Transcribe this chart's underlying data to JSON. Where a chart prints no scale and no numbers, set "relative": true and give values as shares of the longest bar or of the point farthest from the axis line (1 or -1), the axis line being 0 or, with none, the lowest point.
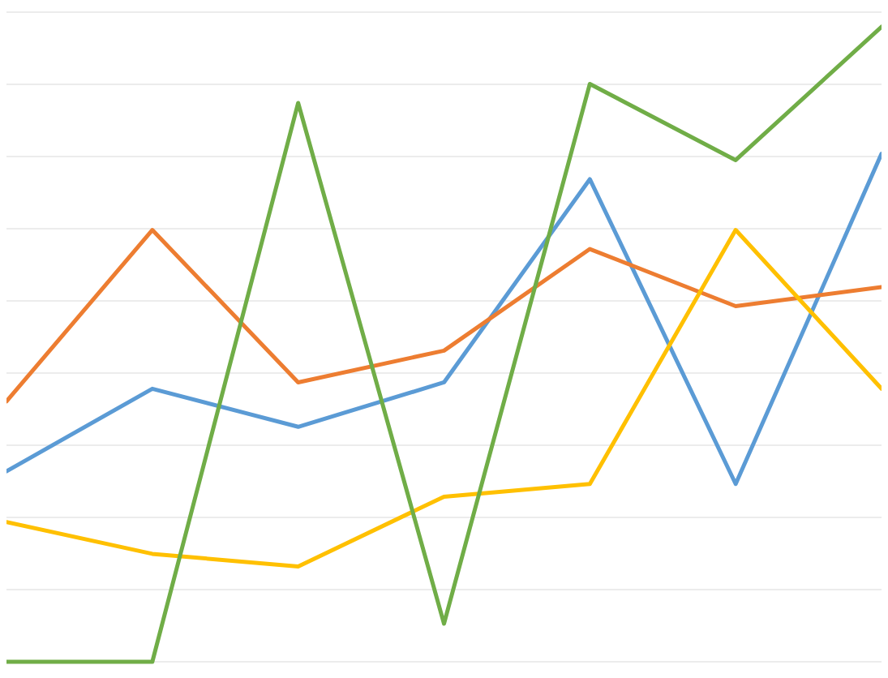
{
  "chart_data": {
    "type": "line",
    "relative": true,
    "grid": true,
    "line_style": "solid",
    "categories": [
      null,
      null,
      null,
      null,
      null,
      null,
      null
    ],
    "series": [
      {
        "color": "#5b9bd5",
        "values": [
          0.3,
          0.43,
          0.37,
          0.44,
          0.76,
          0.28,
          0.8
        ]
      },
      {
        "color": "#ed7d31",
        "values": [
          0.41,
          0.68,
          0.44,
          0.49,
          0.65,
          0.56,
          0.59
        ]
      },
      {
        "color": "#ffc000",
        "values": [
          0.22,
          0.17,
          0.15,
          0.26,
          0.28,
          0.68,
          0.43
        ]
      },
      {
        "color": "#70ad47",
        "values": [
          0,
          0,
          0.88,
          0.06,
          0.91,
          0.79,
          1
        ]
      }
    ]
  }
}
